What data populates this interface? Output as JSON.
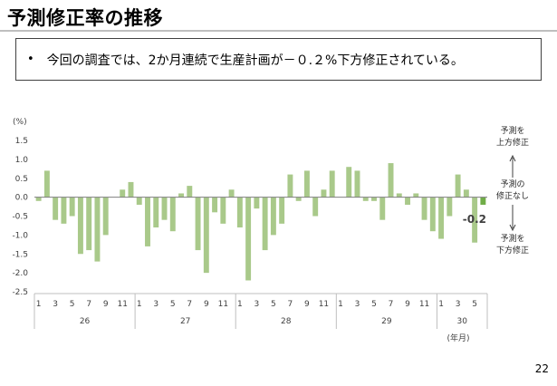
{
  "page": {
    "title": "予測修正率の推移",
    "summary_bullet": "•",
    "summary": "今回の調査では、2か月連続で生産計画が－０.２%下方修正されている。",
    "page_number": "22"
  },
  "chart_data": {
    "type": "bar",
    "title": "",
    "ylabel": "(%)",
    "xlabel": "(年月)",
    "ylim": [
      -2.5,
      1.5
    ],
    "yticks": [
      1.5,
      1.0,
      0.5,
      0.0,
      -0.5,
      -1.0,
      -1.5,
      -2.0,
      -2.5
    ],
    "ytick_labels": [
      "1.5",
      "1.0",
      "0.5",
      "0.0",
      "-0.5",
      "-1.0",
      "-1.5",
      "-2.0",
      "-2.5"
    ],
    "grid": false,
    "bar_color": "#a9c98a",
    "highlight_color": "#70ad47",
    "years": [
      {
        "label": "26",
        "months": 12
      },
      {
        "label": "27",
        "months": 12
      },
      {
        "label": "28",
        "months": 12
      },
      {
        "label": "29",
        "months": 12
      },
      {
        "label": "30",
        "months": 6
      }
    ],
    "month_tick_labels": [
      "1",
      "3",
      "5",
      "7",
      "9",
      "11"
    ],
    "values": [
      -0.1,
      0.7,
      -0.6,
      -0.7,
      -0.5,
      -1.5,
      -1.4,
      -1.7,
      -1.0,
      0.0,
      0.2,
      0.4,
      -0.2,
      -1.3,
      -0.8,
      -0.6,
      -0.9,
      0.1,
      0.3,
      -1.4,
      -2.0,
      -0.4,
      -0.7,
      0.2,
      -0.8,
      -2.2,
      -0.3,
      -1.4,
      -1.0,
      -0.7,
      0.6,
      -0.1,
      0.7,
      -0.5,
      0.2,
      0.7,
      0.0,
      0.8,
      0.7,
      -0.1,
      -0.1,
      -0.6,
      0.9,
      0.1,
      -0.2,
      0.1,
      -0.6,
      -0.9,
      -1.1,
      -0.5,
      0.6,
      0.2,
      -1.2,
      -0.2
    ],
    "last_value_label": "-0.2",
    "annotations": {
      "upward": "予測を\n上方修正",
      "none": "予測の\n修正なし",
      "downward": "予測を\n下方修正"
    }
  }
}
